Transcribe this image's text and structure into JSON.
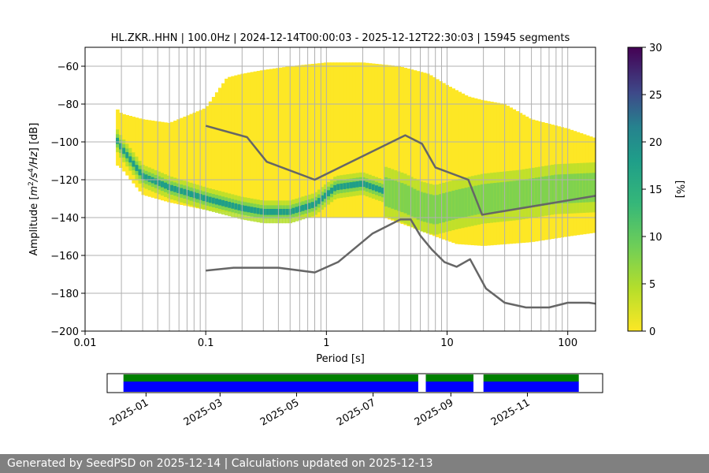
{
  "chart_data": {
    "type": "heatmap",
    "title": "HL.ZKR..HHN | 100.0Hz | 2024-12-14T00:00:03 - 2025-12-12T22:30:03 | 15945 segments",
    "xlabel": "Period [s]",
    "ylabel": "Amplitude [m²/s⁴/Hz] [dB]",
    "x_scale": "log",
    "xlim": [
      0.01,
      170
    ],
    "ylim": [
      -200,
      -50
    ],
    "x_ticks": [
      0.01,
      0.1,
      1,
      10,
      100
    ],
    "x_tick_labels": [
      "0.01",
      "0.1",
      "1",
      "10",
      "100"
    ],
    "y_ticks": [
      -60,
      -80,
      -100,
      -120,
      -140,
      -160,
      -180,
      -200
    ],
    "y_tick_labels": [
      "−60",
      "−80",
      "−100",
      "−120",
      "−140",
      "−160",
      "−180",
      "−200"
    ],
    "grid": true,
    "colorbar": {
      "label": "[%]",
      "range": [
        0,
        30
      ],
      "ticks": [
        0,
        5,
        10,
        15,
        20,
        25,
        30
      ],
      "tick_labels": [
        "0",
        "5",
        "10",
        "15",
        "20",
        "25",
        "30"
      ],
      "colormap": "viridis"
    },
    "density_mode": {
      "period": [
        0.018,
        0.02,
        0.03,
        0.05,
        0.1,
        0.2,
        0.3,
        0.5,
        0.8,
        1.2,
        2,
        3,
        4.5,
        6,
        8,
        12,
        20,
        40,
        80,
        170
      ],
      "amplitude": [
        -98,
        -103,
        -118,
        -124,
        -130,
        -135,
        -137,
        -137,
        -133,
        -124,
        -122,
        -126,
        -130,
        -134,
        -136,
        -133,
        -130,
        -128,
        -125,
        -124
      ]
    },
    "density_upper_edge": {
      "period": [
        0.018,
        0.02,
        0.03,
        0.05,
        0.1,
        0.15,
        0.2,
        0.3,
        0.5,
        1,
        2,
        4,
        7,
        10,
        15,
        20,
        30,
        50,
        100,
        170
      ],
      "amplitude": [
        -82,
        -85,
        -88,
        -90,
        -82,
        -66,
        -64,
        -62,
        -60,
        -58,
        -58,
        -60,
        -64,
        -70,
        -76,
        -78,
        -80,
        -88,
        -93,
        -98
      ]
    },
    "density_lower_edge": {
      "period": [
        0.018,
        0.02,
        0.03,
        0.05,
        0.1,
        0.3,
        0.5,
        1,
        2,
        3,
        5,
        8,
        12,
        20,
        50,
        100,
        170
      ],
      "amplitude": [
        -112,
        -114,
        -128,
        -132,
        -136,
        -139,
        -140,
        -140,
        -140,
        -140,
        -145,
        -150,
        -154,
        -155,
        -153,
        -150,
        -148
      ]
    },
    "series": [
      {
        "name": "",
        "period": [
          0.1,
          0.22,
          0.32,
          0.8,
          4.5,
          6.2,
          8,
          15,
          19.5,
          170
        ],
        "amplitude": [
          -91.5,
          -97.5,
          -110.5,
          -120,
          -96.5,
          -101,
          -113.5,
          -120,
          -138.5,
          -128.5
        ]
      },
      {
        "name": "",
        "period": [
          0.1,
          0.17,
          0.4,
          0.8,
          1.25,
          2.4,
          4.1,
          5,
          6,
          7.5,
          9.5,
          12,
          15.5,
          21,
          30,
          45,
          70,
          100,
          150,
          170
        ],
        "amplitude": [
          -168,
          -166.5,
          -166.5,
          -169,
          -163.5,
          -148.5,
          -141,
          -141,
          -149.5,
          -157,
          -163.5,
          -166,
          -162,
          -177.5,
          -185,
          -187.5,
          -187.5,
          -185,
          -185,
          -185.5
        ]
      }
    ],
    "data_availability": {
      "x_tick_labels": [
        "2025-01",
        "2025-03",
        "2025-05",
        "2025-07",
        "2025-09",
        "2025-11"
      ],
      "colors": {
        "present": "#008000",
        "segments": "#0000ff"
      },
      "coverage_ranges": [
        [
          "2024-12-14",
          "2025-08-06"
        ],
        [
          "2025-08-12",
          "2025-09-19"
        ],
        [
          "2025-09-27",
          "2025-12-12"
        ]
      ]
    }
  },
  "footer": {
    "text": "Generated by SeedPSD on 2025-12-14 | Calculations updated on 2025-12-13"
  }
}
